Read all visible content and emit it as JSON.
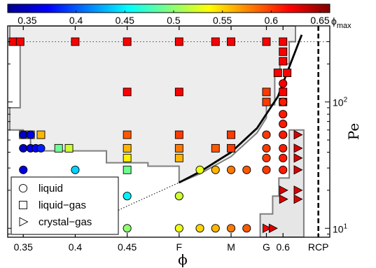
{
  "chart_data": {
    "type": "scatter",
    "xlabel": "ϕ",
    "ylabel": "Pe",
    "x_scale": "linear",
    "y_scale": "log",
    "xlim": [
      0.335,
      0.645
    ],
    "ylim": [
      8.5,
      400
    ],
    "x_ticks": [
      {
        "value": 0.35,
        "label": "0.35"
      },
      {
        "value": 0.4,
        "label": "0.4"
      },
      {
        "value": 0.45,
        "label": "0.45"
      },
      {
        "value": 0.5,
        "label": "F"
      },
      {
        "value": 0.55,
        "label": "M"
      },
      {
        "value": 0.584,
        "label": "G"
      },
      {
        "value": 0.6,
        "label": "0.6"
      },
      {
        "value": 0.634,
        "label": "RCP"
      }
    ],
    "y_ticks": [
      {
        "value": 10,
        "label": "10",
        "exp": "1"
      },
      {
        "value": 100,
        "label": "10",
        "exp": "2"
      }
    ],
    "colorbar": {
      "min": 0.33,
      "max": 0.66,
      "ticks": [
        "0.35",
        "0.4",
        "0.45",
        "0.5",
        "0.55",
        "0.6",
        "0.65"
      ],
      "tick_values": [
        0.35,
        0.4,
        0.45,
        0.5,
        0.55,
        0.6,
        0.65
      ],
      "max_label": "ϕ",
      "max_label_sub": "max"
    },
    "legend": {
      "position": "bottom-left",
      "entries": [
        {
          "marker": "circle",
          "label": "liquid"
        },
        {
          "marker": "square",
          "label": "liquid−gas"
        },
        {
          "marker": "triangle",
          "label": "crystal−gas"
        }
      ]
    },
    "series": [
      {
        "marker": "square",
        "points": [
          {
            "x": 0.34,
            "y": 300,
            "c": 0.62
          },
          {
            "x": 0.347,
            "y": 300,
            "c": 0.62
          },
          {
            "x": 0.4,
            "y": 300,
            "c": 0.62
          },
          {
            "x": 0.45,
            "y": 300,
            "c": 0.62
          },
          {
            "x": 0.5,
            "y": 300,
            "c": 0.62
          },
          {
            "x": 0.535,
            "y": 300,
            "c": 0.62
          },
          {
            "x": 0.55,
            "y": 300,
            "c": 0.62
          },
          {
            "x": 0.584,
            "y": 300,
            "c": 0.62
          },
          {
            "x": 0.6,
            "y": 300,
            "c": 0.62
          },
          {
            "x": 0.6,
            "y": 250,
            "c": 0.62
          },
          {
            "x": 0.6,
            "y": 210,
            "c": 0.62
          },
          {
            "x": 0.595,
            "y": 170,
            "c": 0.62
          },
          {
            "x": 0.604,
            "y": 170,
            "c": 0.62
          },
          {
            "x": 0.45,
            "y": 120,
            "c": 0.62
          },
          {
            "x": 0.5,
            "y": 120,
            "c": 0.62
          },
          {
            "x": 0.584,
            "y": 120,
            "c": 0.6
          },
          {
            "x": 0.6,
            "y": 120,
            "c": 0.62
          },
          {
            "x": 0.584,
            "y": 100,
            "c": 0.6
          },
          {
            "x": 0.6,
            "y": 100,
            "c": 0.62
          },
          {
            "x": 0.35,
            "y": 55,
            "c": 0.53
          },
          {
            "x": 0.357,
            "y": 55,
            "c": 0.55
          },
          {
            "x": 0.367,
            "y": 55,
            "c": 0.56
          },
          {
            "x": 0.45,
            "y": 55,
            "c": 0.59
          },
          {
            "x": 0.5,
            "y": 55,
            "c": 0.6
          },
          {
            "x": 0.55,
            "y": 55,
            "c": 0.6
          },
          {
            "x": 0.384,
            "y": 43,
            "c": 0.49
          },
          {
            "x": 0.394,
            "y": 43,
            "c": 0.52
          },
          {
            "x": 0.45,
            "y": 43,
            "c": 0.56
          },
          {
            "x": 0.5,
            "y": 43,
            "c": 0.58
          },
          {
            "x": 0.535,
            "y": 43,
            "c": 0.59
          },
          {
            "x": 0.55,
            "y": 43,
            "c": 0.6
          },
          {
            "x": 0.45,
            "y": 36,
            "c": 0.54
          },
          {
            "x": 0.5,
            "y": 36,
            "c": 0.56
          },
          {
            "x": 0.45,
            "y": 29,
            "c": 0.49
          }
        ]
      },
      {
        "marker": "circle",
        "points": [
          {
            "x": 0.6,
            "y": 140,
            "c": 0.62
          },
          {
            "x": 0.6,
            "y": 100,
            "c": 0.61
          },
          {
            "x": 0.6,
            "y": 80,
            "c": 0.61
          },
          {
            "x": 0.6,
            "y": 67,
            "c": 0.61
          },
          {
            "x": 0.584,
            "y": 55,
            "c": 0.6
          },
          {
            "x": 0.6,
            "y": 55,
            "c": 0.61
          },
          {
            "x": 0.584,
            "y": 43,
            "c": 0.6
          },
          {
            "x": 0.6,
            "y": 43,
            "c": 0.61
          },
          {
            "x": 0.584,
            "y": 36,
            "c": 0.6
          },
          {
            "x": 0.6,
            "y": 36,
            "c": 0.61
          },
          {
            "x": 0.35,
            "y": 55,
            "c": 0.35
          },
          {
            "x": 0.357,
            "y": 55,
            "c": 0.36
          },
          {
            "x": 0.35,
            "y": 43,
            "c": 0.35
          },
          {
            "x": 0.357,
            "y": 43,
            "c": 0.36
          },
          {
            "x": 0.362,
            "y": 43,
            "c": 0.37
          },
          {
            "x": 0.367,
            "y": 43,
            "c": 0.38
          },
          {
            "x": 0.35,
            "y": 29,
            "c": 0.36
          },
          {
            "x": 0.4,
            "y": 29,
            "c": 0.44
          },
          {
            "x": 0.52,
            "y": 29,
            "c": 0.53
          },
          {
            "x": 0.535,
            "y": 29,
            "c": 0.56
          },
          {
            "x": 0.55,
            "y": 29,
            "c": 0.58
          },
          {
            "x": 0.565,
            "y": 29,
            "c": 0.59
          },
          {
            "x": 0.584,
            "y": 29,
            "c": 0.6
          },
          {
            "x": 0.6,
            "y": 29,
            "c": 0.61
          },
          {
            "x": 0.45,
            "y": 18,
            "c": 0.45
          },
          {
            "x": 0.5,
            "y": 18,
            "c": 0.52
          },
          {
            "x": 0.45,
            "y": 10,
            "c": 0.5
          },
          {
            "x": 0.5,
            "y": 10,
            "c": 0.53
          },
          {
            "x": 0.52,
            "y": 10,
            "c": 0.55
          },
          {
            "x": 0.535,
            "y": 10,
            "c": 0.56
          },
          {
            "x": 0.55,
            "y": 10,
            "c": 0.58
          },
          {
            "x": 0.565,
            "y": 10,
            "c": 0.59
          }
        ]
      },
      {
        "marker": "triangle",
        "points": [
          {
            "x": 0.614,
            "y": 55,
            "c": 0.63
          },
          {
            "x": 0.614,
            "y": 43,
            "c": 0.63
          },
          {
            "x": 0.614,
            "y": 36,
            "c": 0.63
          },
          {
            "x": 0.614,
            "y": 29,
            "c": 0.63
          },
          {
            "x": 0.6,
            "y": 20,
            "c": 0.63
          },
          {
            "x": 0.614,
            "y": 20,
            "c": 0.63
          },
          {
            "x": 0.6,
            "y": 17,
            "c": 0.63
          },
          {
            "x": 0.614,
            "y": 17,
            "c": 0.63
          },
          {
            "x": 0.584,
            "y": 10,
            "c": 0.62
          },
          {
            "x": 0.59,
            "y": 10,
            "c": 0.63
          }
        ]
      }
    ],
    "boundary_lines": {
      "parabola": [
        [
          0.5,
          23
        ],
        [
          0.52,
          28
        ],
        [
          0.55,
          40
        ],
        [
          0.575,
          62
        ],
        [
          0.595,
          110
        ],
        [
          0.605,
          180
        ],
        [
          0.618,
          340
        ]
      ],
      "dotted_extension": [
        [
          0.405,
          10
        ],
        [
          0.45,
          15
        ],
        [
          0.5,
          23
        ]
      ],
      "dotted_hline_y": 300,
      "rcp_x": 0.634
    },
    "regions": {
      "liquid_gas": [
        [
          0.337,
          300
        ],
        [
          0.347,
          300
        ],
        [
          0.347,
          90
        ],
        [
          0.337,
          90
        ],
        [
          0.337,
          60
        ],
        [
          0.35,
          60
        ],
        [
          0.35,
          55
        ],
        [
          0.357,
          55
        ],
        [
          0.357,
          43
        ],
        [
          0.367,
          43
        ],
        [
          0.367,
          41
        ],
        [
          0.43,
          41
        ],
        [
          0.43,
          33
        ],
        [
          0.47,
          33
        ],
        [
          0.47,
          31
        ],
        [
          0.5,
          31
        ],
        [
          0.5,
          23
        ],
        [
          0.52,
          27
        ],
        [
          0.55,
          37
        ],
        [
          0.575,
          57
        ],
        [
          0.584,
          75
        ],
        [
          0.584,
          95
        ],
        [
          0.592,
          95
        ],
        [
          0.592,
          160
        ],
        [
          0.597,
          160
        ],
        [
          0.597,
          200
        ],
        [
          0.606,
          200
        ],
        [
          0.606,
          300
        ],
        [
          0.612,
          300
        ],
        [
          0.612,
          400
        ],
        [
          0.337,
          400
        ]
      ],
      "crystal_gas": [
        [
          0.606,
          60
        ],
        [
          0.62,
          60
        ],
        [
          0.62,
          8.5
        ],
        [
          0.578,
          8.5
        ],
        [
          0.578,
          13
        ],
        [
          0.59,
          13
        ],
        [
          0.59,
          18
        ],
        [
          0.596,
          18
        ],
        [
          0.596,
          25
        ],
        [
          0.606,
          25
        ]
      ]
    }
  }
}
